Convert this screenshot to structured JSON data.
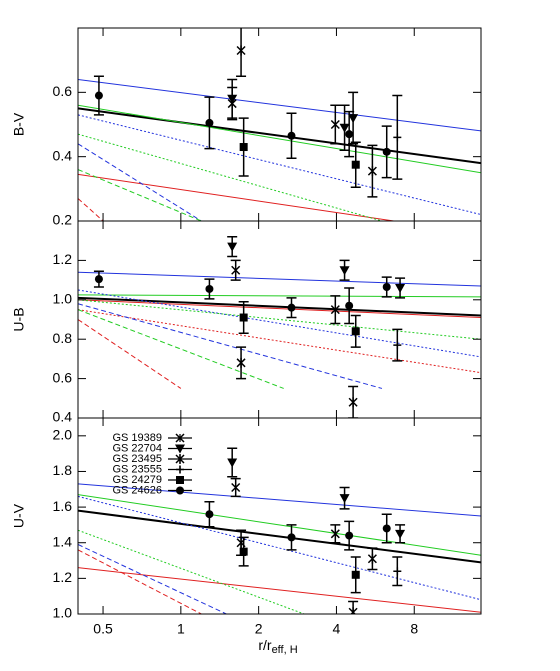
{
  "chart_data": [
    {
      "type": "scatter",
      "ylabel": "B-V",
      "xlog": true,
      "xlim": [
        0.4,
        14.5
      ],
      "ylim": [
        0.2,
        0.8
      ],
      "yticks": [
        0.2,
        0.4,
        0.6,
        0.8
      ],
      "series": [
        {
          "color": "#000000",
          "dash": "solid",
          "x": [
            0.4,
            14.5
          ],
          "values": [
            0.55,
            0.38
          ]
        },
        {
          "color": "#2233dd",
          "dash": "solid",
          "x": [
            0.4,
            14.5
          ],
          "values": [
            0.64,
            0.48
          ]
        },
        {
          "color": "#22cc22",
          "dash": "solid",
          "x": [
            0.4,
            14.5
          ],
          "values": [
            0.56,
            0.35
          ]
        },
        {
          "color": "#e02020",
          "dash": "solid",
          "x": [
            0.4,
            14.5
          ],
          "values": [
            0.345,
            0.16
          ]
        },
        {
          "color": "#2233dd",
          "dash": "dotted",
          "x": [
            0.4,
            14.5
          ],
          "values": [
            0.53,
            0.22
          ]
        },
        {
          "color": "#22cc22",
          "dash": "dotted",
          "x": [
            0.4,
            6
          ],
          "values": [
            0.47,
            0.2
          ]
        },
        {
          "color": "#2233dd",
          "dash": "dashed",
          "x": [
            0.4,
            1.2
          ],
          "values": [
            0.44,
            0.2
          ]
        },
        {
          "color": "#22cc22",
          "dash": "dashed",
          "x": [
            0.4,
            1.2
          ],
          "values": [
            0.36,
            0.2
          ]
        },
        {
          "color": "#e02020",
          "dash": "dashed",
          "x": [
            0.4,
            0.5
          ],
          "values": [
            0.27,
            0.2
          ]
        },
        {
          "marker": "x",
          "color": "#000000",
          "x": [
            1.58,
            3.96
          ],
          "values": [
            0.565,
            0.5
          ],
          "errors": [
            0.05,
            0.06
          ]
        },
        {
          "marker": "triangle",
          "color": "#000000",
          "x": [
            1.58,
            4.3,
            4.64
          ],
          "values": [
            0.58,
            0.49,
            0.52
          ],
          "errors": [
            0.06,
            0.07,
            0.08
          ]
        },
        {
          "marker": "asterisk",
          "color": "#000000",
          "x": [
            1.71,
            5.51
          ],
          "values": [
            0.73,
            0.355
          ],
          "errors": [
            0.08,
            0.08
          ]
        },
        {
          "marker": "plus",
          "color": "#000000",
          "x": [
            6.88
          ],
          "values": [
            0.46
          ],
          "errors": [
            0.13
          ]
        },
        {
          "marker": "square",
          "color": "#000000",
          "x": [
            1.75,
            4.75
          ],
          "values": [
            0.43,
            0.375
          ],
          "errors": [
            0.09,
            0.07
          ]
        },
        {
          "marker": "circle",
          "color": "#000000",
          "x": [
            0.482,
            1.29,
            2.68,
            4.48,
            6.26
          ],
          "values": [
            0.59,
            0.505,
            0.465,
            0.47,
            0.415
          ],
          "errors": [
            0.06,
            0.08,
            0.07,
            0.07,
            0.08
          ]
        }
      ]
    },
    {
      "type": "scatter",
      "ylabel": "U-B",
      "xlog": true,
      "xlim": [
        0.4,
        14.5
      ],
      "ylim": [
        0.4,
        1.4
      ],
      "yticks": [
        0.4,
        0.6,
        0.8,
        {
          "value": 1,
          "label": "1.0"
        },
        1.2
      ],
      "series": [
        {
          "color": "#000000",
          "dash": "solid",
          "x": [
            0.4,
            14.5
          ],
          "values": [
            1.01,
            0.92
          ]
        },
        {
          "color": "#2233dd",
          "dash": "solid",
          "x": [
            0.4,
            14.5
          ],
          "values": [
            1.14,
            1.07
          ]
        },
        {
          "color": "#22cc22",
          "dash": "solid",
          "x": [
            0.4,
            14.5
          ],
          "values": [
            1.025,
            1.015
          ]
        },
        {
          "color": "#e02020",
          "dash": "solid",
          "x": [
            0.4,
            14.5
          ],
          "values": [
            1.0,
            0.91
          ]
        },
        {
          "color": "#2233dd",
          "dash": "dotted",
          "x": [
            0.4,
            14.5
          ],
          "values": [
            1.05,
            0.71
          ]
        },
        {
          "color": "#22cc22",
          "dash": "dotted",
          "x": [
            0.4,
            14.5
          ],
          "values": [
            1.0,
            0.8
          ]
        },
        {
          "color": "#e02020",
          "dash": "dotted",
          "x": [
            0.4,
            14.5
          ],
          "values": [
            0.95,
            0.63
          ]
        },
        {
          "color": "#2233dd",
          "dash": "dashed",
          "x": [
            0.4,
            6
          ],
          "values": [
            0.98,
            0.55
          ]
        },
        {
          "color": "#22cc22",
          "dash": "dashed",
          "x": [
            0.4,
            2.5
          ],
          "values": [
            0.95,
            0.55
          ]
        },
        {
          "color": "#e02020",
          "dash": "dashed",
          "x": [
            0.4,
            1.0
          ],
          "values": [
            0.9,
            0.55
          ]
        },
        {
          "marker": "x",
          "color": "#000000",
          "x": [
            1.63,
            3.96
          ],
          "values": [
            1.15,
            0.95
          ],
          "errors": [
            0.05,
            0.07
          ]
        },
        {
          "marker": "triangle",
          "color": "#000000",
          "x": [
            1.58,
            4.3,
            7.05
          ],
          "values": [
            1.27,
            1.15,
            1.06
          ],
          "errors": [
            0.05,
            0.05,
            0.05
          ]
        },
        {
          "marker": "asterisk",
          "color": "#000000",
          "x": [
            1.71,
            4.64
          ],
          "values": [
            0.68,
            0.48
          ],
          "errors": [
            0.08,
            0.08
          ]
        },
        {
          "marker": "plus",
          "color": "#000000",
          "x": [
            6.88
          ],
          "values": [
            0.77
          ],
          "errors": [
            0.08
          ]
        },
        {
          "marker": "square",
          "color": "#000000",
          "x": [
            1.75,
            4.75
          ],
          "values": [
            0.91,
            0.84
          ],
          "errors": [
            0.08,
            0.08
          ]
        },
        {
          "marker": "circle",
          "color": "#000000",
          "x": [
            0.482,
            1.29,
            2.68,
            4.48,
            6.26
          ],
          "values": [
            1.105,
            1.055,
            0.96,
            0.97,
            1.065
          ],
          "errors": [
            0.04,
            0.05,
            0.05,
            0.09,
            0.05
          ]
        }
      ]
    },
    {
      "type": "scatter",
      "ylabel": "U-V",
      "xlabel": "r/r",
      "xlabel_sub": "eff, H",
      "xlog": true,
      "xlim": [
        0.4,
        14.5
      ],
      "xticks": [
        0.5,
        1,
        2,
        4,
        8
      ],
      "ylim": [
        1.0,
        2.1
      ],
      "yticks": [
        {
          "value": 1,
          "label": "1.0"
        },
        1.2,
        1.4,
        1.6,
        1.8,
        {
          "value": 2,
          "label": "2.0"
        }
      ],
      "legend": "upper left",
      "series": [
        {
          "color": "#000000",
          "dash": "solid",
          "x": [
            0.4,
            14.5
          ],
          "values": [
            1.58,
            1.29
          ]
        },
        {
          "color": "#2233dd",
          "dash": "solid",
          "x": [
            0.4,
            14.5
          ],
          "values": [
            1.73,
            1.55
          ]
        },
        {
          "color": "#22cc22",
          "dash": "solid",
          "x": [
            0.4,
            14.5
          ],
          "values": [
            1.67,
            1.33
          ]
        },
        {
          "color": "#e02020",
          "dash": "solid",
          "x": [
            0.4,
            14.5
          ],
          "values": [
            1.26,
            1.01
          ]
        },
        {
          "color": "#2233dd",
          "dash": "dotted",
          "x": [
            0.4,
            14.5
          ],
          "values": [
            1.66,
            1.08
          ]
        },
        {
          "color": "#22cc22",
          "dash": "dotted",
          "x": [
            0.4,
            3
          ],
          "values": [
            1.47,
            1.0
          ]
        },
        {
          "color": "#2233dd",
          "dash": "dashed",
          "x": [
            0.4,
            1.5
          ],
          "values": [
            1.39,
            1.0
          ]
        },
        {
          "color": "#e02020",
          "dash": "dashed",
          "x": [
            0.4,
            1.2
          ],
          "values": [
            1.36,
            1.0
          ]
        },
        {
          "name": "GS 19389",
          "marker": "x",
          "color": "#000000",
          "x": [
            1.63,
            3.96
          ],
          "values": [
            1.71,
            1.45
          ],
          "errors": [
            0.05,
            0.05
          ]
        },
        {
          "name": "GS 22704",
          "marker": "triangle",
          "color": "#000000",
          "x": [
            1.58,
            4.3,
            7.05
          ],
          "values": [
            1.85,
            1.65,
            1.45
          ],
          "errors": [
            0.08,
            0.06,
            0.05
          ]
        },
        {
          "name": "GS 23495",
          "marker": "asterisk",
          "color": "#000000",
          "x": [
            1.71,
            4.64,
            5.51
          ],
          "values": [
            1.4,
            1.01,
            1.31
          ],
          "errors": [
            0.07,
            0.06,
            0.06
          ]
        },
        {
          "name": "GS 23555",
          "marker": "plus",
          "color": "#000000",
          "x": [
            6.88
          ],
          "values": [
            1.24
          ],
          "errors": [
            0.08
          ]
        },
        {
          "name": "GS 24279",
          "marker": "square",
          "color": "#000000",
          "x": [
            1.75,
            4.75
          ],
          "values": [
            1.35,
            1.22
          ],
          "errors": [
            0.08,
            0.1
          ]
        },
        {
          "name": "GS 24626",
          "marker": "circle",
          "color": "#000000",
          "x": [
            1.29,
            2.68,
            4.48,
            6.26
          ],
          "values": [
            1.56,
            1.43,
            1.44,
            1.48
          ],
          "errors": [
            0.07,
            0.07,
            0.08,
            0.08
          ]
        }
      ]
    }
  ]
}
